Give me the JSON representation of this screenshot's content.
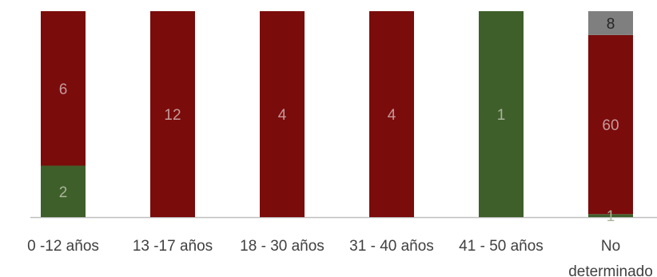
{
  "chart_data": {
    "type": "bar",
    "stacked": true,
    "normalized": true,
    "categories": [
      "0 -12 años",
      "13 -17 años",
      "18 - 30 años",
      "31 - 40 años",
      "41 - 50 años",
      "No determinado"
    ],
    "category_lines": [
      [
        "0 -12 años"
      ],
      [
        "13 -17 años"
      ],
      [
        "18 - 30 años"
      ],
      [
        "31 - 40 años"
      ],
      [
        "41 - 50 años"
      ],
      [
        "No",
        "determinado"
      ]
    ],
    "series": [
      {
        "values": [
          2,
          0,
          0,
          0,
          1,
          1
        ],
        "color": "#3f5f2a",
        "label_color": "#a9b59a"
      },
      {
        "values": [
          6,
          12,
          4,
          4,
          0,
          60
        ],
        "color": "#7b0c0c",
        "label_color": "#c59a9a"
      },
      {
        "values": [
          0,
          0,
          0,
          0,
          0,
          8
        ],
        "color": "#7f7f7f",
        "label_color": "#262626"
      }
    ],
    "legend": "none",
    "grid": false,
    "axis_color": "#bfbfbf"
  }
}
